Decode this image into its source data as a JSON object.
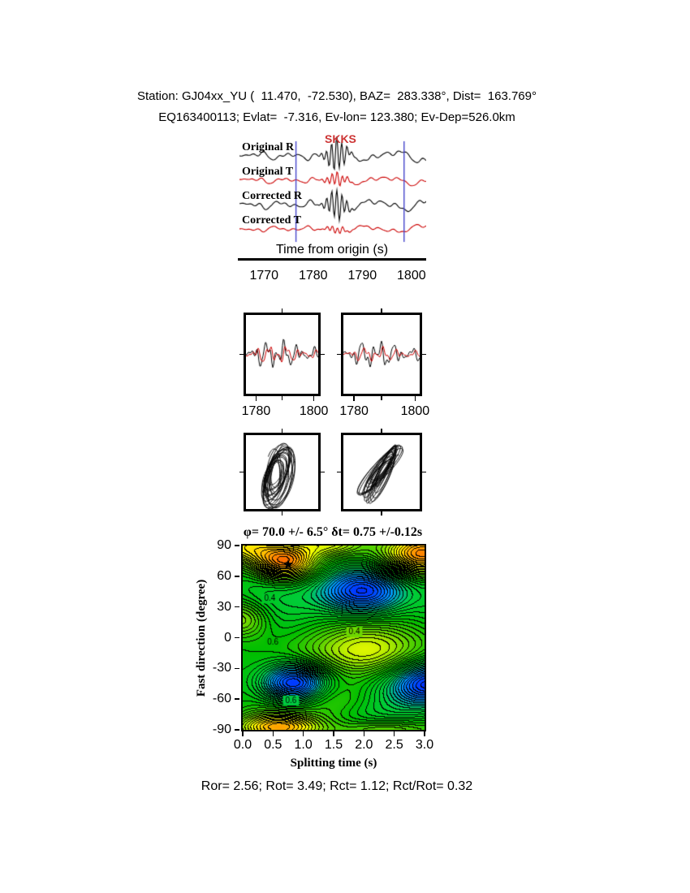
{
  "header": {
    "line1": "Station: GJ04xx_YU (  11.470,  -72.530), BAZ=  283.338°, Dist=  163.769°",
    "line2": "EQ163400113; Evlat=  -7.316, Ev-lon= 123.380; Ev-Dep=526.0km"
  },
  "traces": {
    "phase_label": "SKKS",
    "phase_color": "#cc3333",
    "labels": [
      "Original R",
      "Original T",
      "Corrected R",
      "Corrected T"
    ],
    "colors": [
      "#000000",
      "#cc0000",
      "#000000",
      "#cc0000"
    ],
    "axis_label": "Time from origin (s)",
    "time_range": [
      1765,
      1803
    ],
    "ticks": [
      "1770",
      "1780",
      "1790",
      "1800"
    ],
    "window": [
      1776.5,
      1798.5
    ],
    "window_color": "#4444cc"
  },
  "zoom": {
    "range": [
      1776.5,
      1801.5
    ],
    "ticks": [
      "1780",
      "1800"
    ]
  },
  "result_title": "φ= 70.0 +/- 6.5° δt= 0.75 +/-0.12s",
  "chart_data": {
    "type": "heatmap",
    "title": "φ= 70.0 +/- 6.5° δt= 0.75 +/-0.12s",
    "xlabel": "Splitting time (s)",
    "ylabel": "Fast direction (degree)",
    "xlim": [
      0.0,
      3.0
    ],
    "ylim": [
      -90,
      90
    ],
    "xticks": [
      "0.0",
      "0.5",
      "1.0",
      "1.5",
      "2.0",
      "2.5",
      "3.0"
    ],
    "yticks": [
      "90",
      "60",
      "30",
      "0",
      "-30",
      "-60",
      "-90"
    ],
    "best_solution": {
      "phi_deg": 70.0,
      "phi_err_deg": 6.5,
      "dt_s": 0.75,
      "dt_err_s": 0.12
    },
    "marker_glyph": "★",
    "statistics": {
      "Ror": 2.56,
      "Rot": 3.49,
      "Rct": 1.12,
      "Rct_over_Rot": 0.32
    },
    "contour_labels": [
      {
        "text": "0.4",
        "x": 1.85,
        "y": 5
      },
      {
        "text": "0.6",
        "x": 0.5,
        "y": -5
      },
      {
        "text": "0.6",
        "x": 0.8,
        "y": -62
      },
      {
        "text": "0.4",
        "x": 0.45,
        "y": 38
      }
    ],
    "features": [
      {
        "x": 0.7,
        "y": 74,
        "sx": 0.38,
        "sy": 13,
        "a": 1.25
      },
      {
        "x": 0.0,
        "y": 90,
        "sx": 0.4,
        "sy": 12,
        "a": 0.7
      },
      {
        "x": 3.0,
        "y": 82,
        "sx": 0.45,
        "sy": 15,
        "a": 1.15
      },
      {
        "x": 2.0,
        "y": 46,
        "sx": 0.5,
        "sy": 17,
        "a": -1.2
      },
      {
        "x": 1.45,
        "y": 92,
        "sx": 0.4,
        "sy": 9,
        "a": 0.55
      },
      {
        "x": 0.0,
        "y": 18,
        "sx": 0.3,
        "sy": 13,
        "a": 0.5
      },
      {
        "x": 2.05,
        "y": -15,
        "sx": 0.75,
        "sy": 20,
        "a": 0.7
      },
      {
        "x": 0.85,
        "y": -45,
        "sx": 0.4,
        "sy": 14,
        "a": -1.25
      },
      {
        "x": 3.1,
        "y": -45,
        "sx": 0.45,
        "sy": 16,
        "a": -1.15
      },
      {
        "x": 0.6,
        "y": -88,
        "sx": 0.5,
        "sy": 9,
        "a": 0.85
      },
      {
        "x": 2.3,
        "y": -92,
        "sx": 0.55,
        "sy": 8,
        "a": 0.5
      },
      {
        "x": 1.5,
        "y": -60,
        "sx": 0.5,
        "sy": 14,
        "a": 0.35
      }
    ],
    "colormap_stops": [
      [
        0.0,
        0,
        0,
        130
      ],
      [
        0.15,
        0,
        30,
        255
      ],
      [
        0.3,
        0,
        150,
        255
      ],
      [
        0.42,
        0,
        205,
        60
      ],
      [
        0.52,
        0,
        190,
        0
      ],
      [
        0.62,
        90,
        210,
        0
      ],
      [
        0.74,
        255,
        255,
        0
      ],
      [
        0.84,
        255,
        160,
        0
      ],
      [
        1.0,
        255,
        0,
        0
      ]
    ]
  },
  "footer": "Ror= 2.56; Rot= 3.49; Rct= 1.12; Rct/Rot= 0.32"
}
